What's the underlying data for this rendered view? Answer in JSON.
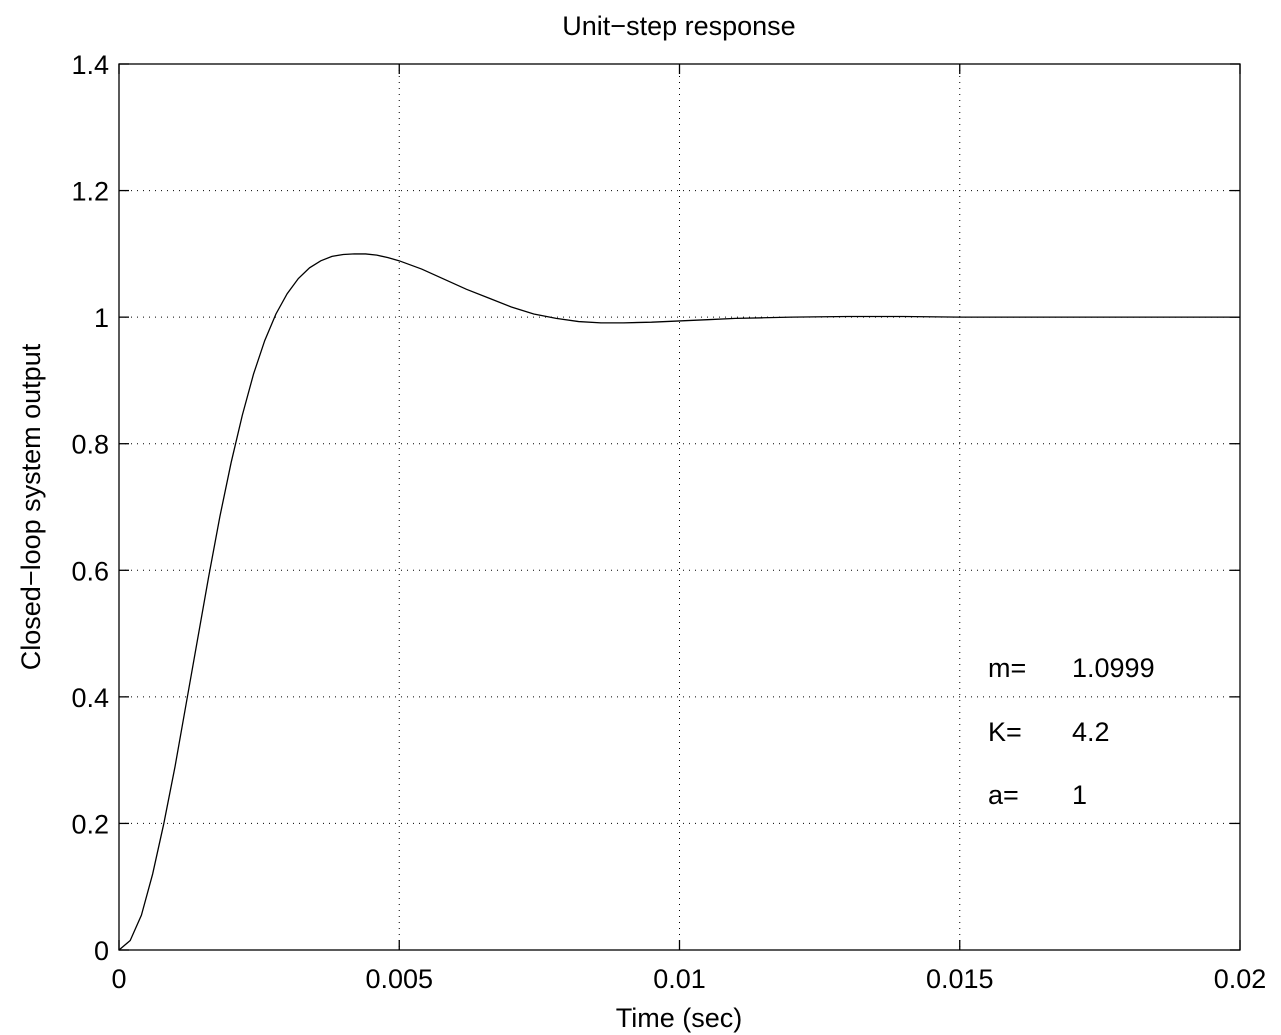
{
  "chart_data": {
    "type": "line",
    "title": "Unit−step response",
    "xlabel": "Time (sec)",
    "ylabel": "Closed−loop system output",
    "xlim": [
      0,
      0.02
    ],
    "ylim": [
      0,
      1.4
    ],
    "grid": true,
    "x_ticks": [
      0,
      0.005,
      0.01,
      0.015,
      0.02
    ],
    "x_tick_labels": [
      "0",
      "0.005",
      "0.01",
      "0.015",
      "0.02"
    ],
    "y_ticks": [
      0,
      0.2,
      0.4,
      0.6,
      0.8,
      1.0,
      1.2,
      1.4
    ],
    "y_tick_labels": [
      "0",
      "0.2",
      "0.4",
      "0.6",
      "0.8",
      "1",
      "1.2",
      "1.4"
    ],
    "series": [
      {
        "x": [
          0,
          0.0002,
          0.0004,
          0.0006,
          0.0008,
          0.001,
          0.0012,
          0.0014,
          0.0016,
          0.0018,
          0.002,
          0.0022,
          0.0024,
          0.0026,
          0.0028,
          0.003,
          0.0032,
          0.0034,
          0.0036,
          0.0038,
          0.004,
          0.0042,
          0.0044,
          0.0046,
          0.0048,
          0.005,
          0.0054,
          0.0058,
          0.0062,
          0.0066,
          0.007,
          0.0074,
          0.0078,
          0.0082,
          0.0086,
          0.009,
          0.0095,
          0.01,
          0.0105,
          0.011,
          0.0115,
          0.012,
          0.013,
          0.014,
          0.015,
          0.016,
          0.017,
          0.018,
          0.019,
          0.02
        ],
        "y": [
          0,
          0.015,
          0.055,
          0.12,
          0.2,
          0.29,
          0.39,
          0.49,
          0.59,
          0.685,
          0.77,
          0.845,
          0.91,
          0.963,
          1.005,
          1.037,
          1.061,
          1.078,
          1.089,
          1.096,
          1.099,
          1.1,
          1.0999,
          1.098,
          1.094,
          1.089,
          1.076,
          1.06,
          1.044,
          1.03,
          1.016,
          1.005,
          0.998,
          0.993,
          0.991,
          0.991,
          0.992,
          0.994,
          0.996,
          0.998,
          0.999,
          1.0,
          1.001,
          1.001,
          1.0,
          1.0,
          1.0,
          1.0,
          1.0,
          1.0
        ]
      }
    ],
    "annotations": [
      {
        "label": "m=",
        "value": "1.0999"
      },
      {
        "label": "K=",
        "value": "4.2"
      },
      {
        "label": "a=",
        "value": "1"
      }
    ]
  }
}
